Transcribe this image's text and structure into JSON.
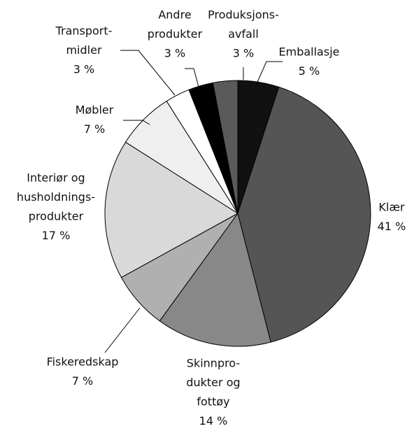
{
  "chart_data": {
    "type": "pie",
    "categories": [
      [
        "Emballasje"
      ],
      [
        "Klær"
      ],
      [
        "Skinnpro-",
        "dukter og",
        "fottøy"
      ],
      [
        "Fiskeredskap"
      ],
      [
        "Interiør og",
        "husholdnings-",
        "produkter"
      ],
      [
        "Møbler"
      ],
      [
        "Transport-",
        "midler"
      ],
      [
        "Andre",
        "produkter"
      ],
      [
        "Produksjons-",
        "avfall"
      ]
    ],
    "values": [
      5,
      41,
      14,
      7,
      17,
      7,
      3,
      3,
      3
    ],
    "value_labels": [
      "5 %",
      "41 %",
      "14 %",
      "7 %",
      "17 %",
      "7 %",
      "3 %",
      "3 %",
      "3 %"
    ],
    "colors": [
      "#111111",
      "#555555",
      "#888888",
      "#b0b0b0",
      "#d9d9d9",
      "#efefef",
      "#ffffff",
      "#000000",
      "#5a5a5a"
    ]
  }
}
